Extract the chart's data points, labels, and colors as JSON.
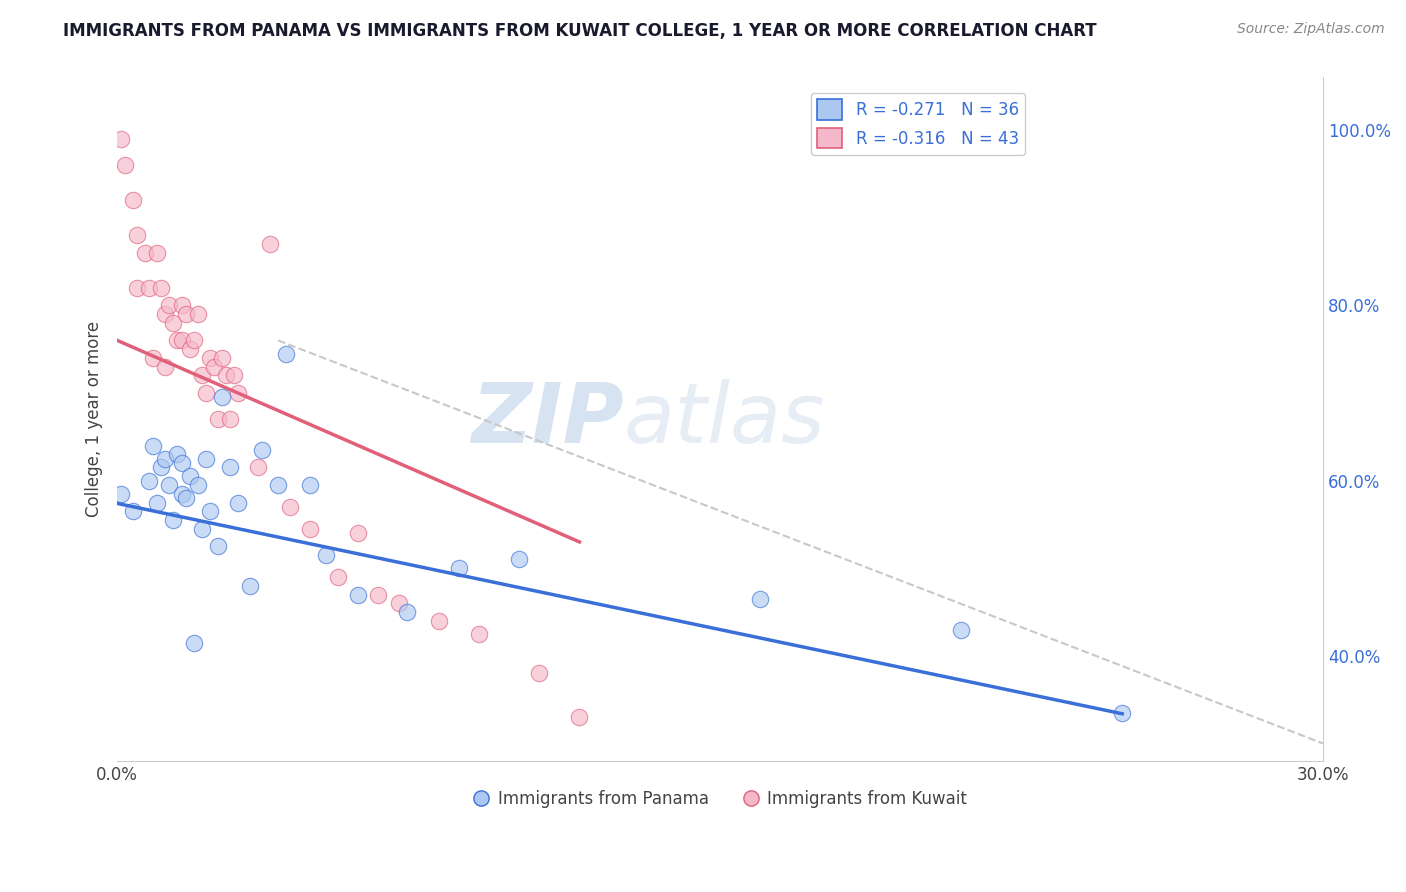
{
  "title": "IMMIGRANTS FROM PANAMA VS IMMIGRANTS FROM KUWAIT COLLEGE, 1 YEAR OR MORE CORRELATION CHART",
  "source": "Source: ZipAtlas.com",
  "ylabel": "College, 1 year or more",
  "x_label_bottom_legend1": "Immigrants from Panama",
  "x_label_bottom_legend2": "Immigrants from Kuwait",
  "xlim": [
    0.0,
    0.3
  ],
  "ylim": [
    0.28,
    1.06
  ],
  "x_ticks": [
    0.0,
    0.05,
    0.1,
    0.15,
    0.2,
    0.25,
    0.3
  ],
  "x_tick_labels": [
    "0.0%",
    "",
    "",
    "",
    "",
    "",
    "30.0%"
  ],
  "y_ticks_right": [
    0.4,
    0.6,
    0.8,
    1.0
  ],
  "y_tick_labels_right": [
    "40.0%",
    "60.0%",
    "80.0%",
    "100.0%"
  ],
  "legend_r1": "-0.271",
  "legend_n1": "36",
  "legend_r2": "-0.316",
  "legend_n2": "43",
  "color_panama": "#adc8f0",
  "color_kuwait": "#f5b8ca",
  "trendline_panama_color": "#3a6fd8",
  "trendline_kuwait_color": "#e0607a",
  "trendline_dashed_color": "#c8c8c8",
  "watermark_zip": "ZIP",
  "watermark_atlas": "atlas",
  "panama_x": [
    0.001,
    0.004,
    0.008,
    0.009,
    0.01,
    0.011,
    0.012,
    0.013,
    0.014,
    0.015,
    0.016,
    0.016,
    0.017,
    0.018,
    0.019,
    0.02,
    0.021,
    0.022,
    0.023,
    0.025,
    0.026,
    0.028,
    0.03,
    0.033,
    0.036,
    0.04,
    0.042,
    0.048,
    0.052,
    0.06,
    0.072,
    0.085,
    0.1,
    0.16,
    0.21,
    0.25
  ],
  "panama_y": [
    0.585,
    0.565,
    0.6,
    0.64,
    0.575,
    0.615,
    0.625,
    0.595,
    0.555,
    0.63,
    0.585,
    0.62,
    0.58,
    0.605,
    0.415,
    0.595,
    0.545,
    0.625,
    0.565,
    0.525,
    0.695,
    0.615,
    0.575,
    0.48,
    0.635,
    0.595,
    0.745,
    0.595,
    0.515,
    0.47,
    0.45,
    0.5,
    0.51,
    0.465,
    0.43,
    0.335
  ],
  "kuwait_x": [
    0.001,
    0.002,
    0.004,
    0.005,
    0.005,
    0.007,
    0.008,
    0.009,
    0.01,
    0.011,
    0.012,
    0.012,
    0.013,
    0.014,
    0.015,
    0.016,
    0.016,
    0.017,
    0.018,
    0.019,
    0.02,
    0.021,
    0.022,
    0.023,
    0.024,
    0.025,
    0.026,
    0.027,
    0.028,
    0.029,
    0.03,
    0.035,
    0.038,
    0.043,
    0.048,
    0.055,
    0.06,
    0.065,
    0.07,
    0.08,
    0.09,
    0.105,
    0.115
  ],
  "kuwait_y": [
    0.99,
    0.96,
    0.92,
    0.88,
    0.82,
    0.86,
    0.82,
    0.74,
    0.86,
    0.82,
    0.79,
    0.73,
    0.8,
    0.78,
    0.76,
    0.8,
    0.76,
    0.79,
    0.75,
    0.76,
    0.79,
    0.72,
    0.7,
    0.74,
    0.73,
    0.67,
    0.74,
    0.72,
    0.67,
    0.72,
    0.7,
    0.615,
    0.87,
    0.57,
    0.545,
    0.49,
    0.54,
    0.47,
    0.46,
    0.44,
    0.425,
    0.38,
    0.33
  ],
  "trendline_panama": [
    0.0,
    0.25,
    0.574,
    0.334
  ],
  "trendline_kuwait": [
    0.0,
    0.115,
    0.76,
    0.53
  ],
  "dashed_line": [
    0.04,
    0.3,
    0.76,
    0.3
  ]
}
